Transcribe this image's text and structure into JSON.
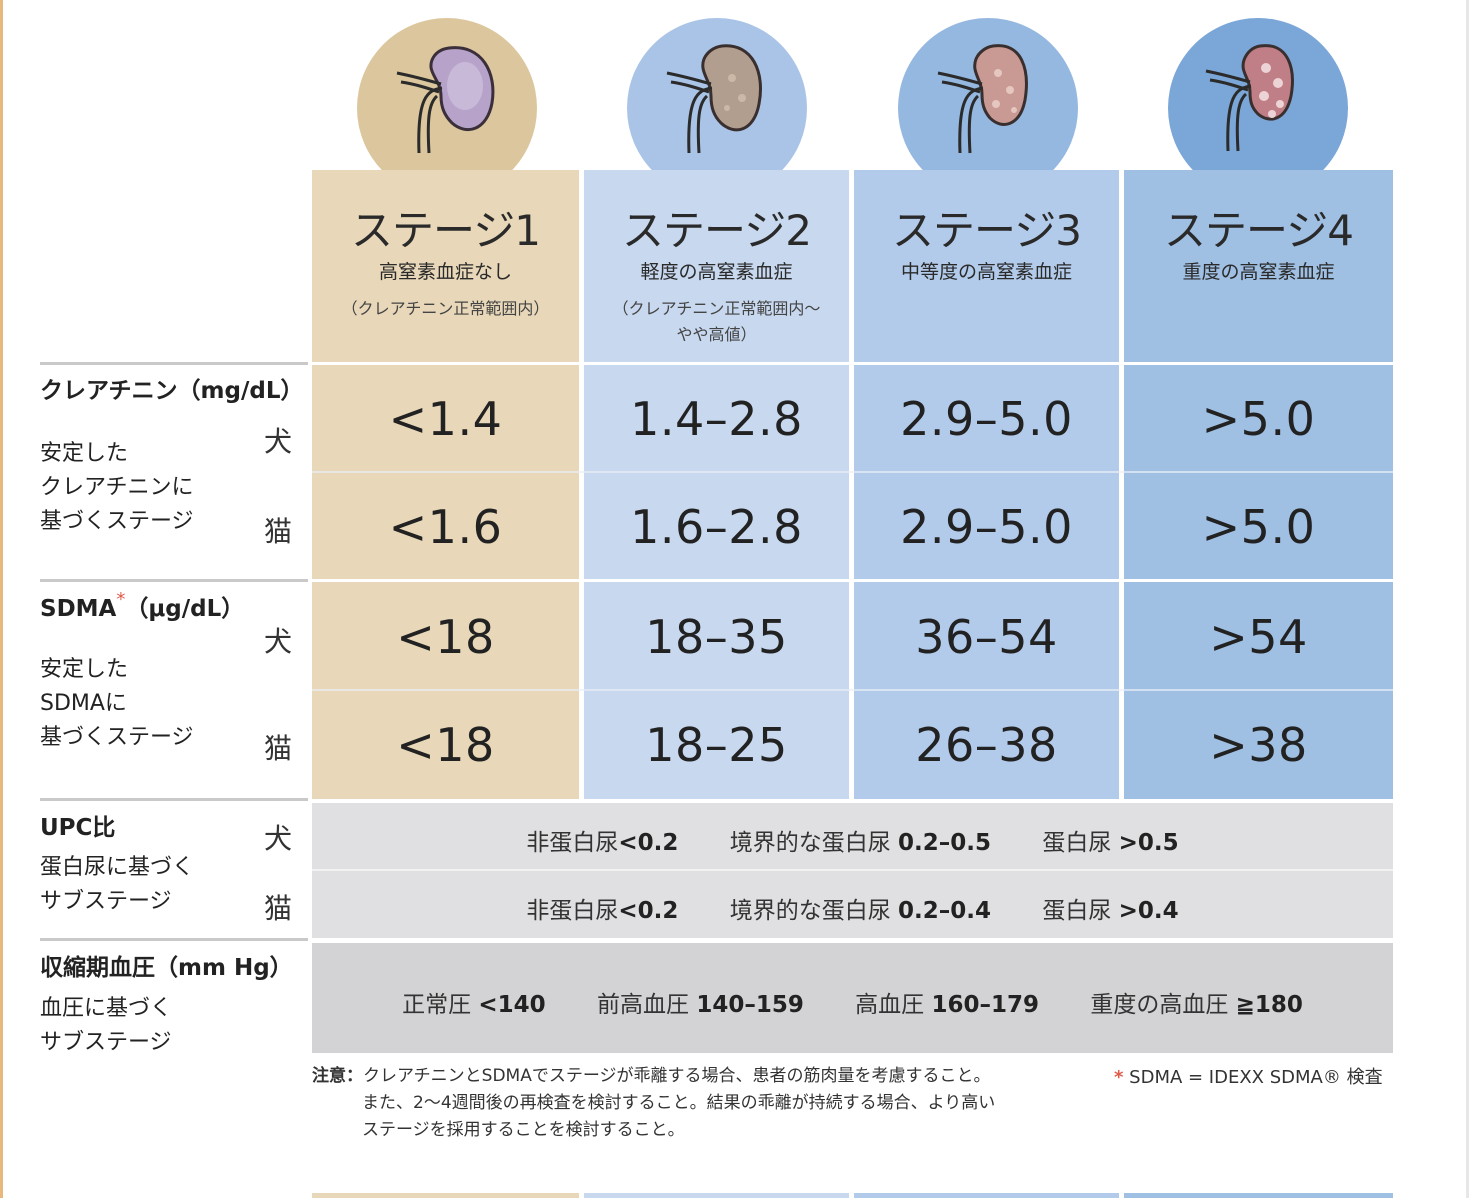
{
  "stages": [
    {
      "title": "ステージ1",
      "subtitle": "高窒素血症なし",
      "note": "（クレアチニン正常範囲内）"
    },
    {
      "title": "ステージ2",
      "subtitle": "軽度の高窒素血症",
      "note_line1": "（クレアチニン正常範囲内〜",
      "note_line2": "やや高値）"
    },
    {
      "title": "ステージ3",
      "subtitle": "中等度の高窒素血症"
    },
    {
      "title": "ステージ4",
      "subtitle": "重度の高窒素血症"
    }
  ],
  "creatinine": {
    "header": "クレアチニン（mg/dL）",
    "desc_line1": "安定した",
    "desc_line2": "クレアチニンに",
    "desc_line3": "基づくステージ",
    "dog_label": "犬",
    "cat_label": "猫",
    "dog": [
      "<1.4",
      "1.4–2.8",
      "2.9–5.0",
      ">5.0"
    ],
    "cat": [
      "<1.6",
      "1.6–2.8",
      "2.9–5.0",
      ">5.0"
    ]
  },
  "sdma": {
    "header_main": "SDMA",
    "header_star": "*",
    "header_unit": "（μg/dL）",
    "desc_line1": "安定した",
    "desc_line2": "SDMAに",
    "desc_line3": "基づくステージ",
    "dog_label": "犬",
    "cat_label": "猫",
    "dog": [
      "<18",
      "18–35",
      "36–54",
      ">54"
    ],
    "cat": [
      "<18",
      "18–25",
      "26–38",
      ">38"
    ]
  },
  "upc": {
    "header": "UPC比",
    "desc_line1": "蛋白尿に基づく",
    "desc_line2": "サブステージ",
    "dog_label": "犬",
    "cat_label": "猫",
    "dog": [
      {
        "label": "非蛋白尿",
        "value": "<0.2"
      },
      {
        "label": "境界的な蛋白尿",
        "value": "0.2–0.5"
      },
      {
        "label": "蛋白尿",
        "value": ">0.5"
      }
    ],
    "cat": [
      {
        "label": "非蛋白尿",
        "value": "<0.2"
      },
      {
        "label": "境界的な蛋白尿",
        "value": "0.2–0.4"
      },
      {
        "label": "蛋白尿",
        "value": ">0.4"
      }
    ]
  },
  "bp": {
    "header": "収縮期血圧（mm Hg）",
    "desc_line1": "血圧に基づく",
    "desc_line2": "サブステージ",
    "items": [
      {
        "label": "正常圧",
        "value": "<140"
      },
      {
        "label": "前高血圧",
        "value": "140–159"
      },
      {
        "label": "高血圧",
        "value": "160–179"
      },
      {
        "label": "重度の高血圧",
        "value": "≧180"
      }
    ]
  },
  "note": {
    "label": "注意：",
    "line1": "クレアチニンとSDMAでステージが乖離する場合、患者の筋肉量を考慮すること。",
    "line2": "また、2〜4週間後の再検査を検討すること。結果の乖離が持続する場合、より高い",
    "line3": "ステージを採用することを検討すること。"
  },
  "footnote": {
    "star": "*",
    "text": "SDMA = IDEXX SDMA® 検査"
  },
  "colors": {
    "stage1": "#e8d8b9",
    "stage2": "#c7d8ef",
    "stage3": "#b3cbea",
    "stage4": "#9fbfe3",
    "accent_red": "#e05a4a"
  }
}
